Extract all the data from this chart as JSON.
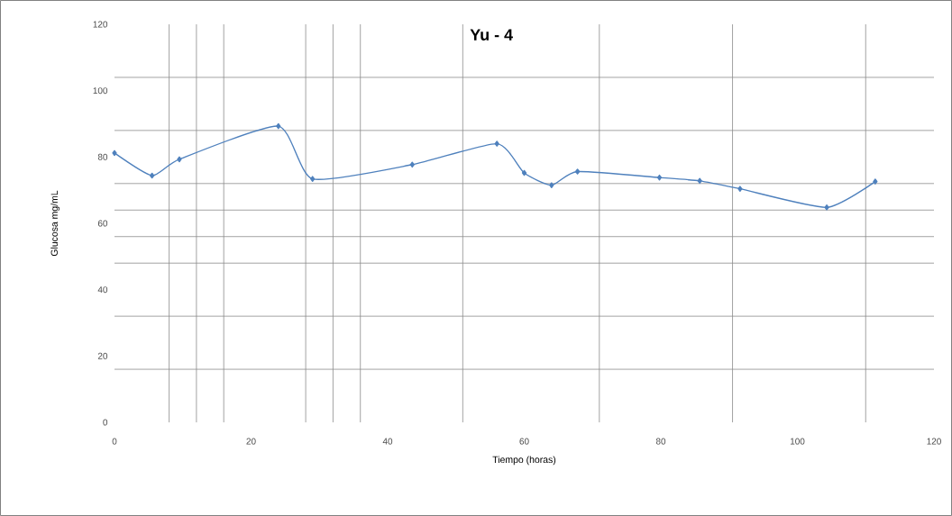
{
  "chart_data": {
    "type": "line",
    "title": "Yu - 4",
    "xlabel": "Tiempo (horas)",
    "ylabel": "Glucosa mg/mL",
    "x": [
      0,
      5.5,
      9.5,
      24,
      29,
      43.6,
      56,
      60,
      64,
      67.8,
      79.8,
      85.7,
      91.6,
      104.3,
      111.4
    ],
    "series": [
      {
        "color": "#4f81bd",
        "values": [
          81.2,
          74.4,
          79.3,
          89.3,
          73.4,
          77.7,
          84,
          75.2,
          71.5,
          75.6,
          73.8,
          72.8,
          70.4,
          64.8,
          72.6
        ]
      }
    ],
    "xlim": [
      0,
      120
    ],
    "ylim": [
      0,
      120
    ],
    "xticks": [
      0,
      20,
      40,
      60,
      80,
      100,
      120,
      {
        "value": 8,
        "label": null
      },
      {
        "value": 12,
        "label": null
      },
      {
        "value": 16,
        "label": null
      },
      {
        "value": 28,
        "label": null
      },
      {
        "value": 32,
        "label": null
      },
      {
        "value": 36,
        "label": null
      },
      {
        "value": 51,
        "label": null
      },
      {
        "value": 71,
        "label": null
      },
      {
        "value": 90.5,
        "label": null
      },
      {
        "value": 110,
        "label": null
      }
    ],
    "yticks": [
      0,
      20,
      40,
      60,
      80,
      100,
      120,
      {
        "value": 16,
        "label": null
      },
      {
        "value": 32,
        "label": null
      },
      {
        "value": 48,
        "label": null
      },
      {
        "value": 56,
        "label": null
      },
      {
        "value": 64,
        "label": null
      },
      {
        "value": 72,
        "label": null
      },
      {
        "value": 88,
        "label": null
      },
      {
        "value": 104,
        "label": null
      }
    ],
    "grid": true,
    "marker": "diamond",
    "line_style": "solid"
  }
}
